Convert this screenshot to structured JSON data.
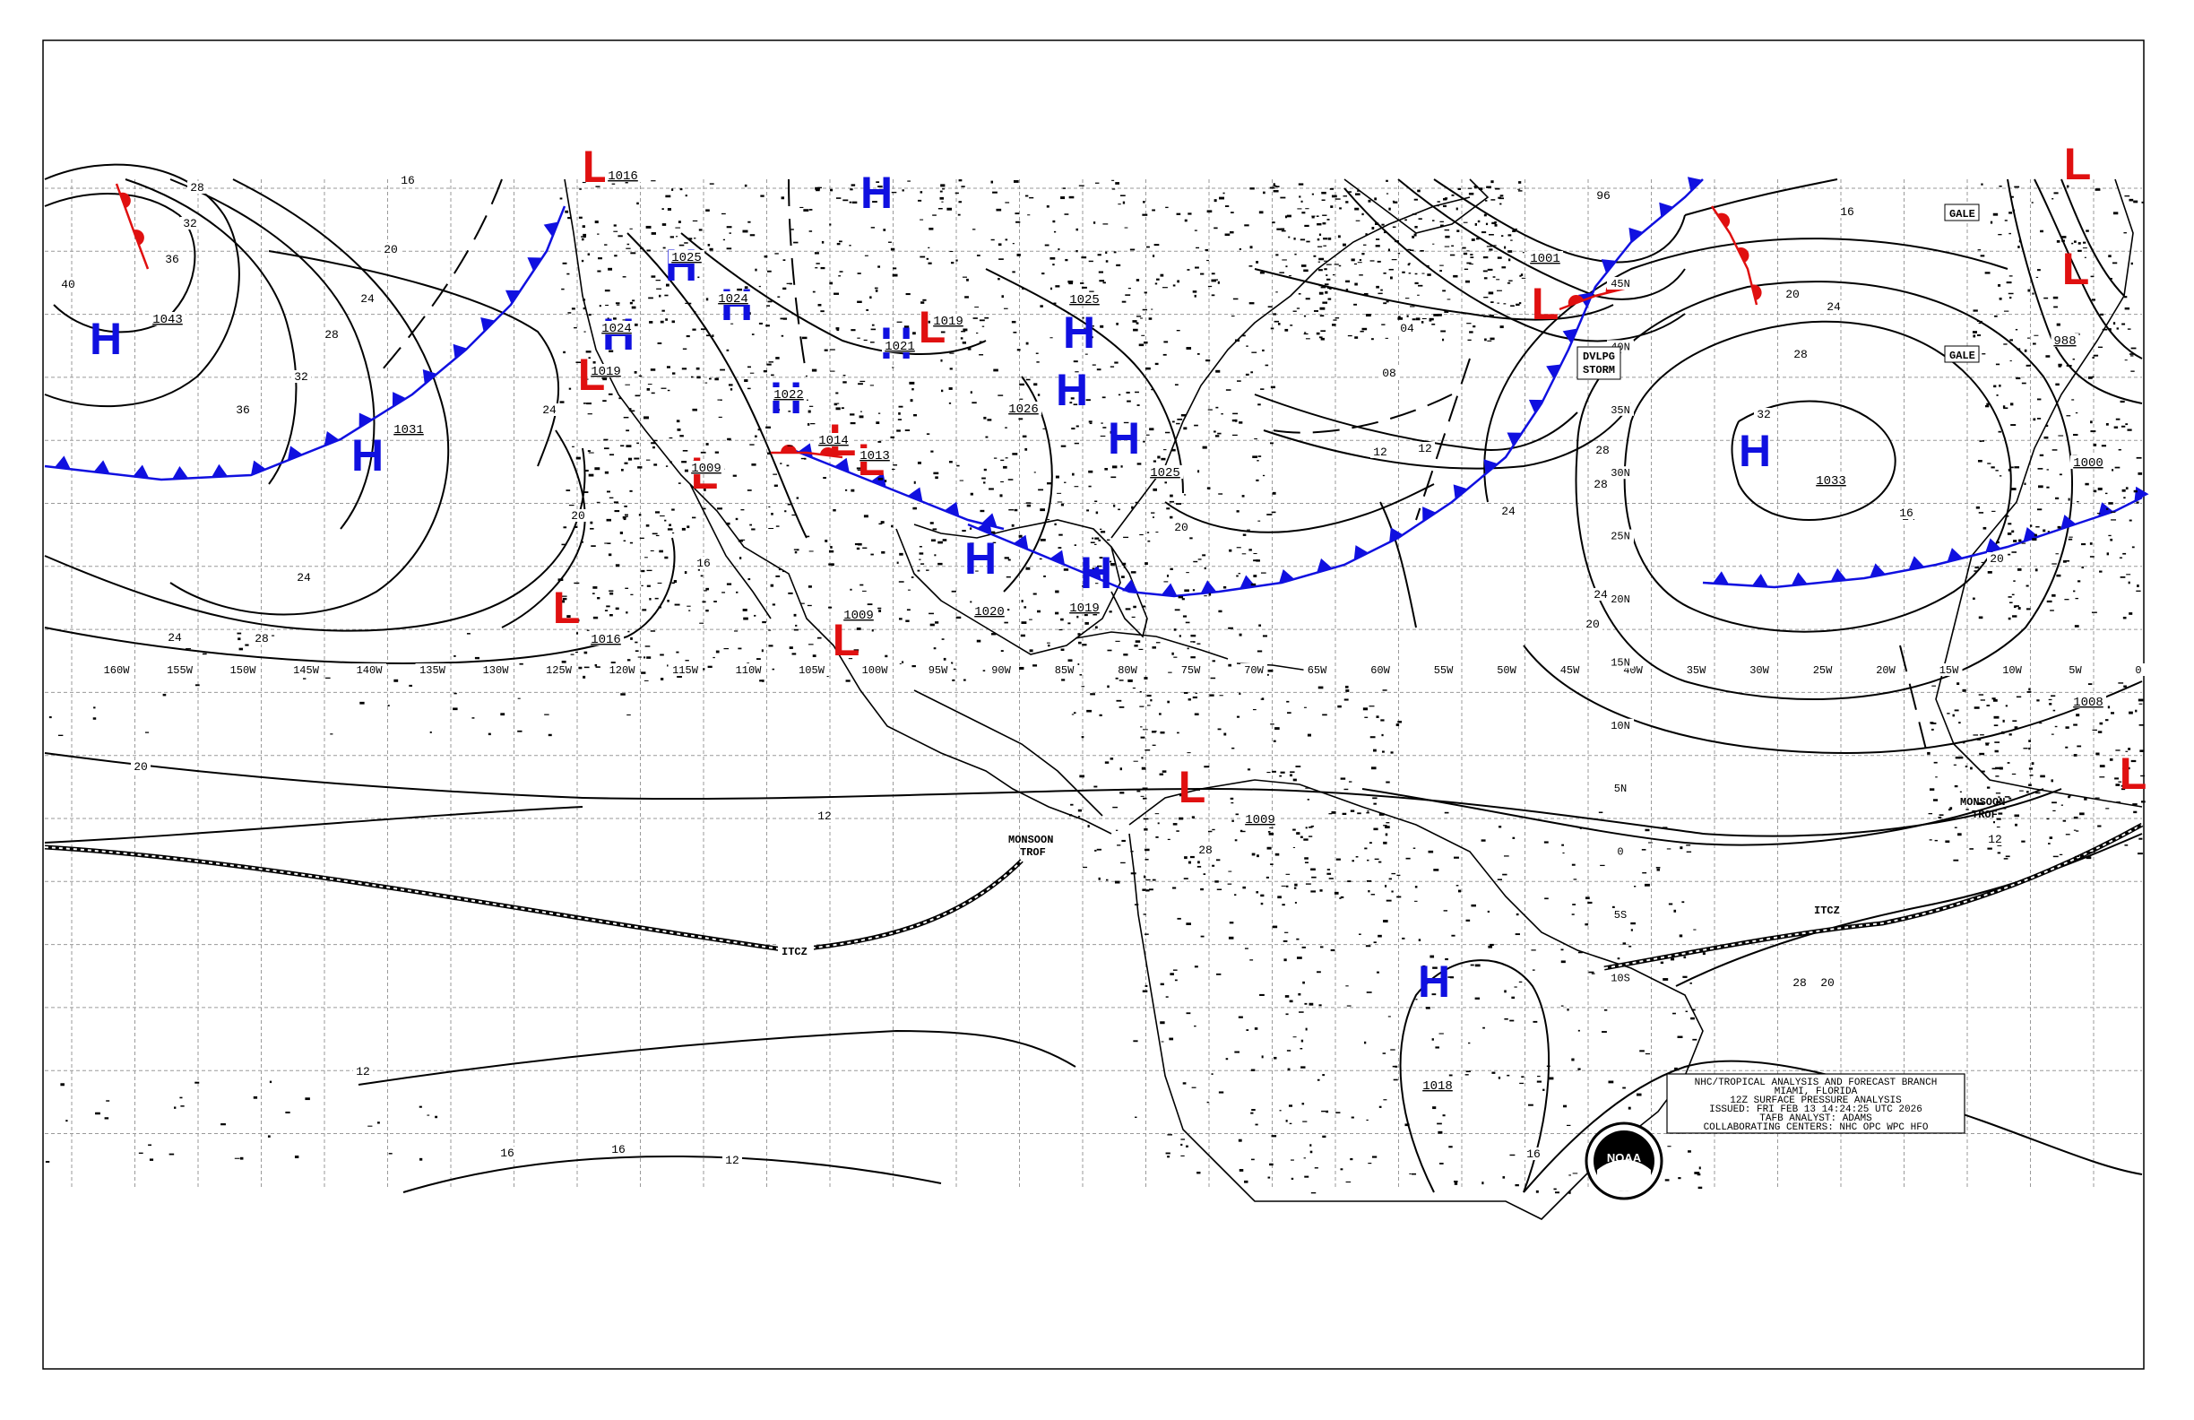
{
  "colors": {
    "high": "#1010e0",
    "low": "#e01010",
    "cold_front": "#1010e0",
    "warm_front": "#e01010",
    "isobar": "#000000",
    "grid": "#9a9a9a",
    "background": "#ffffff",
    "occluded_front": "#9020c0"
  },
  "info_box": {
    "line1": "NHC/TROPICAL ANALYSIS AND FORECAST BRANCH",
    "line2": "MIAMI, FLORIDA",
    "line3": "12Z SURFACE PRESSURE ANALYSIS",
    "line4": "ISSUED: FRI FEB 13 14:24:25 UTC 2026",
    "line5": "TAFB ANALYST: ADAMS",
    "line6": "COLLABORATING CENTERS: NHC OPC WPC HFO"
  },
  "logo": {
    "text": "NOAA"
  },
  "longitude_labels": [
    "160W",
    "155W",
    "150W",
    "145W",
    "140W",
    "135W",
    "130W",
    "125W",
    "120W",
    "115W",
    "110W",
    "105W",
    "100W",
    "95W",
    "90W",
    "85W",
    "80W",
    "75W",
    "70W",
    "65W",
    "60W",
    "55W",
    "50W",
    "45W",
    "40W",
    "35W",
    "30W",
    "25W",
    "20W",
    "15W",
    "10W",
    "5W",
    "0"
  ],
  "latitude_labels": [
    "45N",
    "40N",
    "35N",
    "30N",
    "25N",
    "20N",
    "15N",
    "10N",
    "5N",
    "0",
    "5S",
    "10S"
  ],
  "pressure_centers": [
    {
      "type": "H",
      "value": "1043",
      "region": "north-pacific"
    },
    {
      "type": "H",
      "value": "1031",
      "region": "east-pacific"
    },
    {
      "type": "H",
      "value": "1024",
      "region": "california"
    },
    {
      "type": "H",
      "value": "1025",
      "region": "great-basin"
    },
    {
      "type": "H",
      "value": "1024",
      "region": "rockies"
    },
    {
      "type": "H",
      "value": "1022",
      "region": "southwest"
    },
    {
      "type": "H",
      "value": "1021",
      "region": "plains"
    },
    {
      "type": "H",
      "value": "",
      "region": "north-plains"
    },
    {
      "type": "H",
      "value": "1025",
      "region": "great-lakes"
    },
    {
      "type": "H",
      "value": "1026",
      "region": "ohio-valley"
    },
    {
      "type": "H",
      "value": "1025",
      "region": "southeast"
    },
    {
      "type": "H",
      "value": "1020",
      "region": "gulf"
    },
    {
      "type": "H",
      "value": "1019",
      "region": "florida"
    },
    {
      "type": "H",
      "value": "1033",
      "region": "central-atlantic"
    },
    {
      "type": "H",
      "value": "1018",
      "region": "brazil"
    },
    {
      "type": "L",
      "value": "1016",
      "region": "pacific-northwest"
    },
    {
      "type": "L",
      "value": "1019",
      "region": "california-coast"
    },
    {
      "type": "L",
      "value": "1009",
      "region": "baja"
    },
    {
      "type": "L",
      "value": "1014",
      "region": "new-mexico"
    },
    {
      "type": "L",
      "value": "1013",
      "region": "texas"
    },
    {
      "type": "L",
      "value": "1019",
      "region": "plains"
    },
    {
      "type": "L",
      "value": "1016",
      "region": "east-pacific"
    },
    {
      "type": "L",
      "value": "1009",
      "region": "mexico"
    },
    {
      "type": "L",
      "value": "1009",
      "region": "colombia"
    },
    {
      "type": "L",
      "value": "1001",
      "region": "north-atlantic"
    },
    {
      "type": "L",
      "value": "988",
      "region": "northeast-atlantic"
    },
    {
      "type": "L",
      "value": "1000",
      "region": "iberia"
    },
    {
      "type": "L",
      "value": "1008",
      "region": "west-africa"
    }
  ],
  "isobar_labels": [
    "28",
    "32",
    "36",
    "40",
    "36",
    "32",
    "28",
    "24",
    "20",
    "16",
    "24",
    "20",
    "24",
    "28",
    "24",
    "20",
    "16",
    "12",
    "08",
    "04",
    "96",
    "12",
    "12",
    "20",
    "24",
    "28",
    "32",
    "28",
    "24",
    "20",
    "16",
    "20",
    "24",
    "28",
    "12",
    "16",
    "16",
    "16",
    "12",
    "28",
    "24",
    "20",
    "16",
    "12",
    "20",
    "28"
  ],
  "features": {
    "dvlpg_storm": "DVLPG\nSTORM",
    "gale1": "GALE",
    "gale2": "GALE",
    "monsoon_trof_west": "MONSOON\nTROF",
    "monsoon_trof_east": "MONSOON\nTROF",
    "itcz_west": "ITCZ",
    "itcz_east": "ITCZ"
  }
}
